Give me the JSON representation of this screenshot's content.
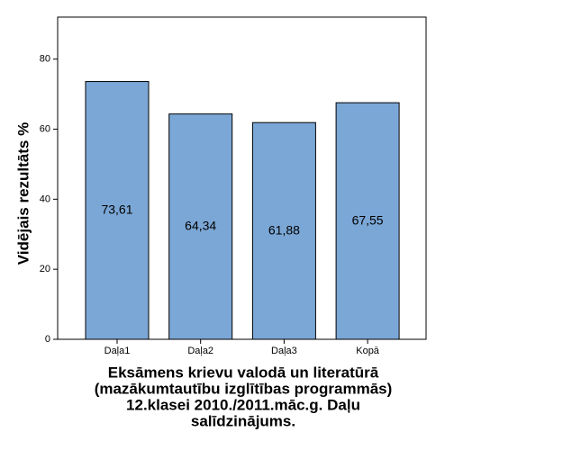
{
  "chart_data": {
    "type": "bar",
    "categories": [
      "Daļa1",
      "Daļa2",
      "Daļa3",
      "Kopā"
    ],
    "values": [
      73.61,
      64.34,
      61.88,
      67.55
    ],
    "value_labels": [
      "73,61",
      "64,34",
      "61,88",
      "67,55"
    ],
    "color": "#7ba7d6",
    "ylim": [
      0,
      92
    ],
    "yticks": [
      0,
      20,
      40,
      60,
      80
    ],
    "ylabel": "Vidējais rezultāts %",
    "xlabel": [
      "Eksāmens krievu valodā un literatūrā",
      "(mazākumtautību izglītības programmās)",
      "12.klasei 2010./2011.māc.g. Daļu",
      "salīdzinājums."
    ]
  }
}
